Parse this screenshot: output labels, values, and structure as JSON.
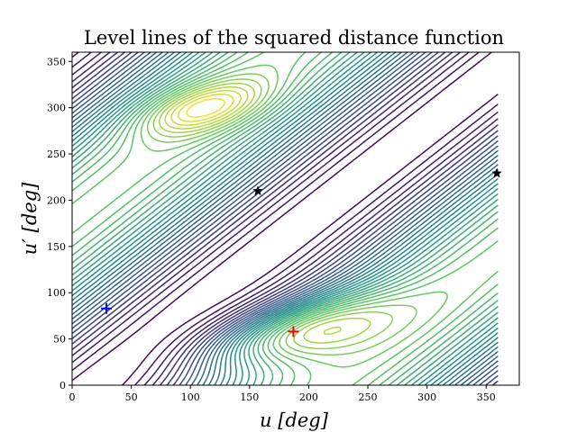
{
  "chart_data": {
    "type": "contour",
    "title": "Level lines of the squared distance function",
    "xlabel": "u [deg]",
    "ylabel": "u′ [deg]",
    "xlim": [
      0,
      378
    ],
    "ylim": [
      0,
      360
    ],
    "xticks": [
      0,
      50,
      100,
      150,
      200,
      250,
      300,
      350
    ],
    "yticks": [
      0,
      50,
      100,
      150,
      200,
      250,
      300,
      350
    ],
    "grid": false,
    "colormap": [
      "#440154",
      "#3b528b",
      "#21918c",
      "#5ec962",
      "#fde725"
    ],
    "markers": [
      {
        "name": "blue-cross",
        "shape": "plus",
        "color": "#0000ff",
        "x": 29,
        "y": 83
      },
      {
        "name": "red-cross",
        "shape": "plus",
        "color": "#ff0000",
        "x": 187,
        "y": 58
      },
      {
        "name": "star-1",
        "shape": "star",
        "color": "#000000",
        "x": 157,
        "y": 210
      },
      {
        "name": "star-2",
        "shape": "star",
        "color": "#000000",
        "x": 359,
        "y": 229
      }
    ]
  }
}
